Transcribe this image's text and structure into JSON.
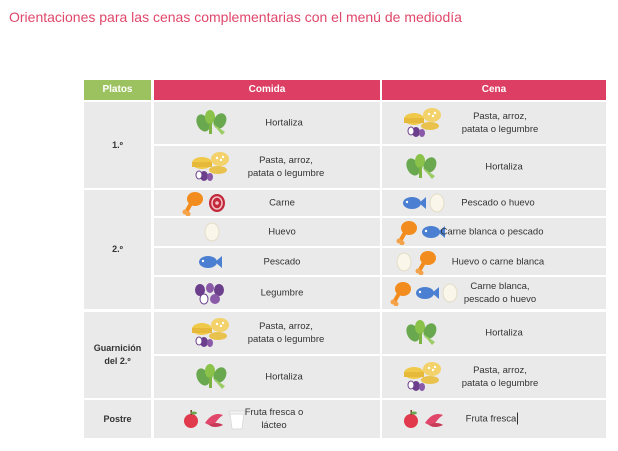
{
  "title": "Orientaciones para las cenas complementarias con el menú de mediodía",
  "headers": {
    "platos": "Platos",
    "comida": "Comida",
    "cena": "Cena"
  },
  "groups": [
    {
      "label": "1.º"
    },
    {
      "label": "2.º"
    },
    {
      "label": "Guarnición\ndel 2.º"
    },
    {
      "label": "Postre"
    }
  ],
  "rows": [
    {
      "comida": {
        "label": "Hortaliza",
        "icons": [
          "vegetables-icon"
        ]
      },
      "cena": {
        "label": "Pasta, arroz,\npatata o legumbre",
        "icons": [
          "pasta-rice-potato-legume-icon"
        ]
      }
    },
    {
      "comida": {
        "label": "Pasta, arroz,\npatata o legumbre",
        "icons": [
          "pasta-rice-potato-legume-icon"
        ]
      },
      "cena": {
        "label": "Hortaliza",
        "icons": [
          "vegetables-icon"
        ]
      }
    },
    {
      "comida": {
        "label": "Carne",
        "icons": [
          "chicken-leg-icon",
          "meat-icon"
        ]
      },
      "cena": {
        "label": "Pescado o huevo",
        "icons": [
          "fish-icon",
          "egg-icon"
        ]
      }
    },
    {
      "comida": {
        "label": "Huevo",
        "icons": [
          "egg-icon"
        ]
      },
      "cena": {
        "label": "Carne blanca o pescado",
        "icons": [
          "chicken-leg-icon",
          "fish-icon"
        ]
      }
    },
    {
      "comida": {
        "label": "Pescado",
        "icons": [
          "fish-icon"
        ]
      },
      "cena": {
        "label": "Huevo o carne blanca",
        "icons": [
          "egg-icon",
          "chicken-leg-icon"
        ]
      }
    },
    {
      "comida": {
        "label": "Legumbre",
        "icons": [
          "legumes-icon"
        ]
      },
      "cena": {
        "label": "Carne blanca,\npescado o huevo",
        "icons": [
          "chicken-leg-icon",
          "fish-icon",
          "egg-icon"
        ]
      }
    },
    {
      "comida": {
        "label": "Pasta, arroz,\npatata o legumbre",
        "icons": [
          "pasta-rice-potato-legume-icon"
        ]
      },
      "cena": {
        "label": "Hortaliza",
        "icons": [
          "vegetables-icon"
        ]
      }
    },
    {
      "comida": {
        "label": "Hortaliza",
        "icons": [
          "vegetables-icon"
        ]
      },
      "cena": {
        "label": "Pasta, arroz,\npatata o legumbre",
        "icons": [
          "pasta-rice-potato-legume-icon"
        ]
      }
    },
    {
      "comida": {
        "label": "Fruta fresca o\nlácteo",
        "icons": [
          "apple-icon",
          "fruit-icon",
          "yogurt-icon"
        ]
      },
      "cena": {
        "label": "Fruta fresca",
        "icons": [
          "apple-icon",
          "fruit-icon"
        ]
      }
    }
  ],
  "colors": {
    "title": "#e0476a",
    "header_red": "#dc3f63",
    "header_green": "#9cc25f",
    "cell_bg": "#eaeaea"
  }
}
